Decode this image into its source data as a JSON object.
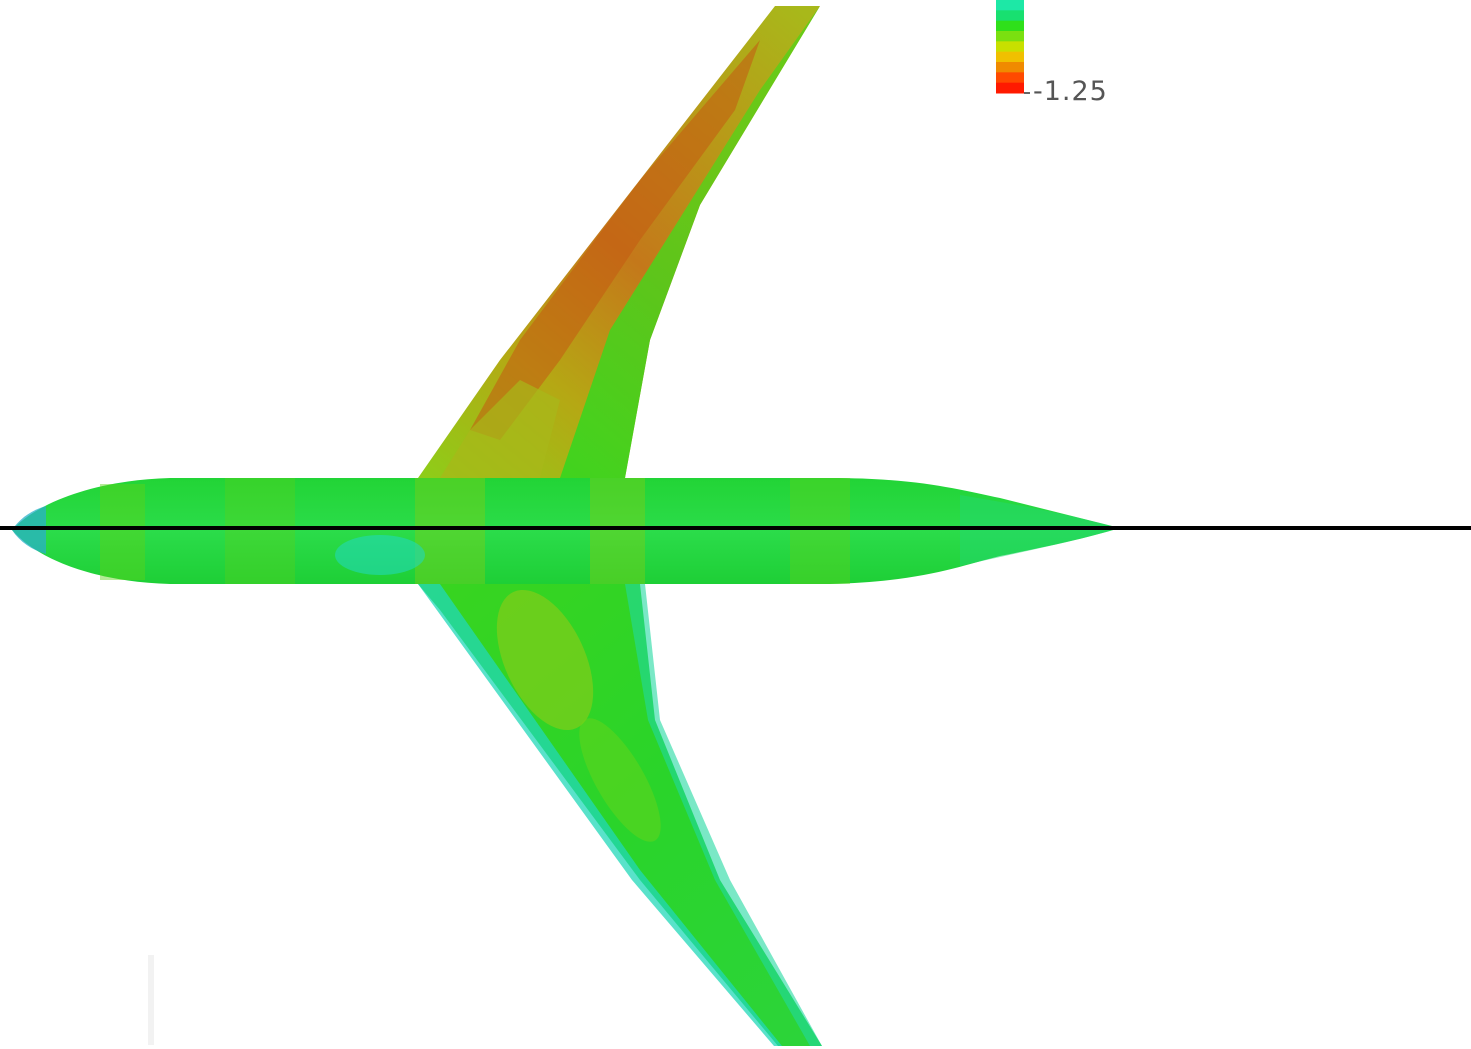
{
  "legend": {
    "min_label": "-1.25",
    "colors": [
      "#1de8a6",
      "#18e070",
      "#2fe01a",
      "#7ae010",
      "#c8e000",
      "#f0c000",
      "#f08a00",
      "#ff4a00",
      "#ff1a00"
    ]
  },
  "colors": {
    "fuselage": "#1ed83a",
    "wing_lower_tone": "#2ad82a",
    "wing_upper_tone": "#9cc21a",
    "wing_hot": "#c85a10",
    "leading_edge_cool": "#22d8b8",
    "symmetry_line": "#000000"
  }
}
